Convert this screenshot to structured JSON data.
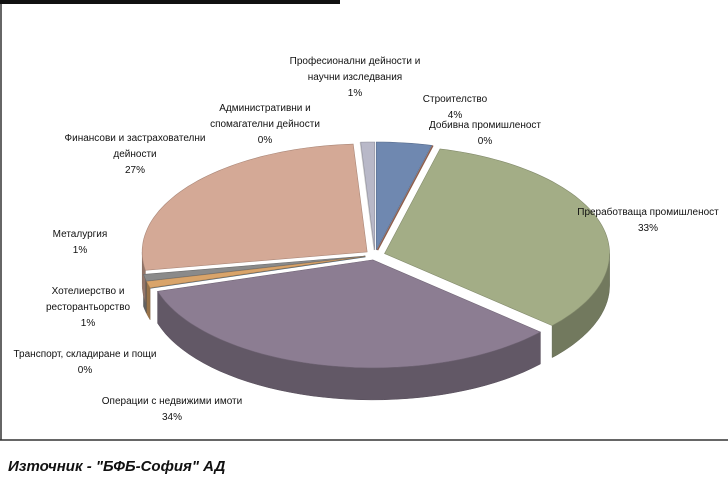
{
  "chart_data": {
    "type": "pie",
    "categories": [
      "Строителство",
      "Добивна промишленост",
      "Преработваща промишленост",
      "Операции с недвижими имоти",
      "Транспорт, складиране и пощи",
      "Хотелиерство и ресторантьорство",
      "Металургия",
      "Финансови и застрахователни дейности",
      "Административни и спомагателни дейности",
      "Професионални дейности и научни изследвания"
    ],
    "values": [
      4,
      0,
      33,
      34,
      0,
      1,
      1,
      27,
      0,
      1
    ],
    "value_labels": [
      "4%",
      "0%",
      "33%",
      "34%",
      "0%",
      "1%",
      "1%",
      "27%",
      "0%",
      "1%"
    ],
    "colors": [
      "#6f88b0",
      "#b07560",
      "#a3ad86",
      "#8c7d92",
      "#5f7a90",
      "#d9a46a",
      "#8a8a8a",
      "#d4a996",
      "#ffffff",
      "#b8b8c8"
    ],
    "source": "Източник - \"БФБ-София\" АД"
  }
}
